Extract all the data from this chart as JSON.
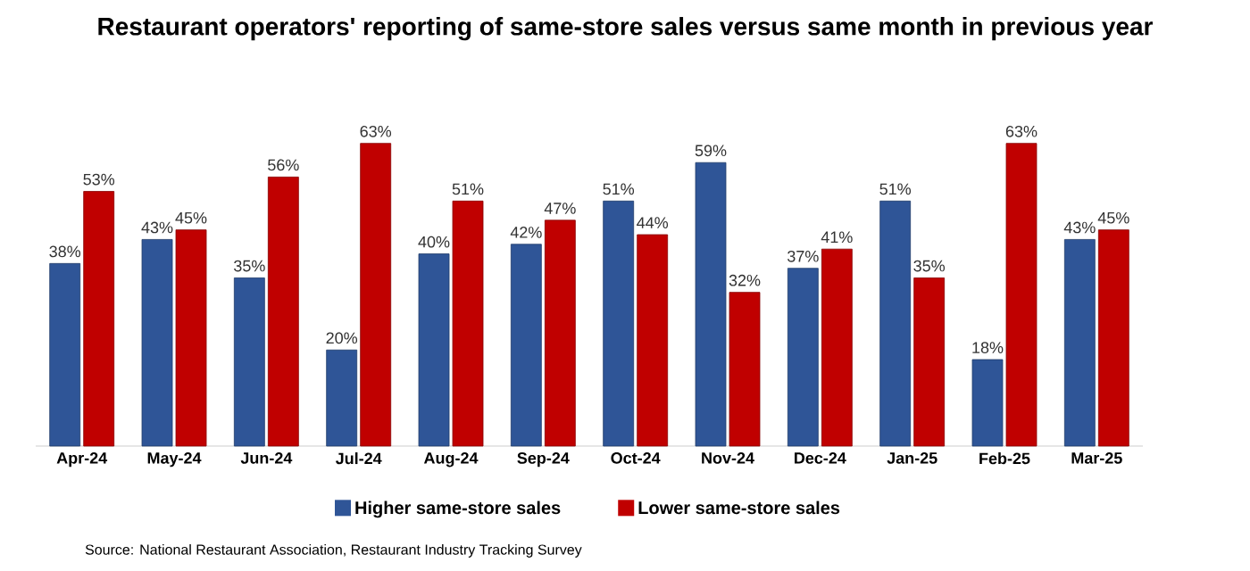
{
  "chart_data": {
    "type": "bar",
    "title": "Restaurant operators' reporting of same-store sales versus same month in previous year",
    "categories": [
      "Apr-24",
      "May-24",
      "Jun-24",
      "Jul-24",
      "Aug-24",
      "Sep-24",
      "Oct-24",
      "Nov-24",
      "Dec-24",
      "Jan-25",
      "Feb-25",
      "Mar-25"
    ],
    "series": [
      {
        "name": "Higher same-store sales",
        "color": "#2f5597",
        "values": [
          38,
          43,
          35,
          20,
          40,
          42,
          51,
          59,
          37,
          51,
          18,
          43
        ],
        "value_labels": [
          "38%",
          "43%",
          "35%",
          "20%",
          "40%",
          "42%",
          "51%",
          "59%",
          "37%",
          "51%",
          "18%",
          "43%"
        ]
      },
      {
        "name": "Lower same-store sales",
        "color": "#c00000",
        "values": [
          53,
          45,
          56,
          63,
          51,
          47,
          44,
          32,
          41,
          35,
          63,
          45
        ],
        "value_labels": [
          "53%",
          "45%",
          "56%",
          "63%",
          "51%",
          "47%",
          "44%",
          "32%",
          "41%",
          "35%",
          "63%",
          "45%"
        ]
      }
    ],
    "legend": "bottom",
    "annotations": [
      "Source: National Restaurant Association, Restaurant Industry Tracking Survey"
    ]
  }
}
